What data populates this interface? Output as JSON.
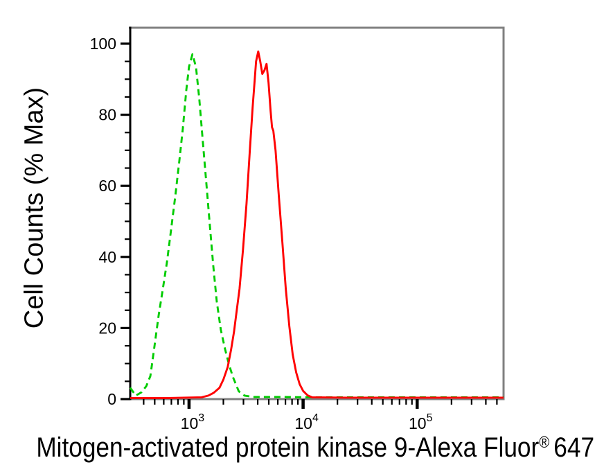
{
  "figure": {
    "y_axis_title": "Cell Counts (% Max)",
    "x_axis_title": {
      "prefix": "Mitogen-activated protein kinase 9-Alexa Fluor",
      "registered_mark": "®",
      "suffix": "647"
    }
  },
  "colors": {
    "background": "#ffffff",
    "frame_gray": "#808080",
    "axis_black": "#000000",
    "green_series": "#00cc00",
    "red_series": "#ff0000",
    "text": "#000000"
  },
  "chart_data": {
    "type": "line",
    "subtype": "flow-cytometry-histogram",
    "title": "",
    "xlabel": "Mitogen-activated protein kinase 9-Alexa Fluor® 647",
    "ylabel": "Cell Counts (% Max)",
    "x_scale": "log10",
    "x_range": [
      305,
      572000
    ],
    "ylim": [
      0,
      104.5
    ],
    "grid": false,
    "legend": "none",
    "y_ticks": [
      0,
      20,
      40,
      60,
      80,
      100
    ],
    "y_tick_labels": [
      "0",
      "20",
      "40",
      "60",
      "80",
      "100"
    ],
    "y_minor_tick_step": 5,
    "x_major_ticks": [
      {
        "value": 1000,
        "base": "10",
        "exp": "3"
      },
      {
        "value": 10000,
        "base": "10",
        "exp": "4"
      },
      {
        "value": 100000,
        "base": "10",
        "exp": "5"
      }
    ],
    "series": [
      {
        "name": "green dashed histogram (negative control)",
        "color": "#00cc00",
        "style": "dashed",
        "peak": {
          "x": 1070,
          "y": 97
        },
        "points": [
          [
            305,
            3.2
          ],
          [
            341,
            1.0
          ],
          [
            382,
            1.9
          ],
          [
            421,
            3.6
          ],
          [
            458,
            6.5
          ],
          [
            498,
            15
          ],
          [
            541,
            23.5
          ],
          [
            589,
            31
          ],
          [
            640,
            38.5
          ],
          [
            695,
            47.5
          ],
          [
            757,
            57
          ],
          [
            822,
            67
          ],
          [
            882,
            76
          ],
          [
            946,
            87
          ],
          [
            1000,
            93.5
          ],
          [
            1070,
            97
          ],
          [
            1150,
            93.5
          ],
          [
            1230,
            84.5
          ],
          [
            1320,
            72.5
          ],
          [
            1420,
            60.5
          ],
          [
            1520,
            49
          ],
          [
            1630,
            37.5
          ],
          [
            1750,
            27.5
          ],
          [
            1900,
            19.5
          ],
          [
            2070,
            14
          ],
          [
            2250,
            9.5
          ],
          [
            2440,
            6
          ],
          [
            2730,
            2.2
          ],
          [
            3060,
            1.0
          ],
          [
            3660,
            0.6
          ],
          [
            5960,
            0.6
          ],
          [
            12000,
            0.5
          ],
          [
            48400,
            0.5
          ],
          [
            572000,
            0.5
          ]
        ]
      },
      {
        "name": "red solid histogram (stained sample)",
        "color": "#ff0000",
        "style": "solid",
        "peak": {
          "x": 4040,
          "y": 97.8
        },
        "points": [
          [
            305,
            0.3
          ],
          [
            640,
            0.3
          ],
          [
            1290,
            0.5
          ],
          [
            1480,
            1.0
          ],
          [
            1650,
            1.8
          ],
          [
            1850,
            3.2
          ],
          [
            2000,
            5.5
          ],
          [
            2180,
            9
          ],
          [
            2340,
            14
          ],
          [
            2480,
            19
          ],
          [
            2620,
            25
          ],
          [
            2770,
            31
          ],
          [
            2970,
            42
          ],
          [
            3190,
            55
          ],
          [
            3410,
            70
          ],
          [
            3610,
            82
          ],
          [
            3770,
            90
          ],
          [
            3870,
            95
          ],
          [
            4040,
            97.8
          ],
          [
            4210,
            95
          ],
          [
            4390,
            91.5
          ],
          [
            4580,
            92.5
          ],
          [
            4780,
            94.3
          ],
          [
            4980,
            89
          ],
          [
            5190,
            81
          ],
          [
            5340,
            76.5
          ],
          [
            5480,
            75.5
          ],
          [
            5730,
            70
          ],
          [
            6130,
            57
          ],
          [
            6580,
            44
          ],
          [
            7050,
            31
          ],
          [
            7570,
            20.5
          ],
          [
            8110,
            12.5
          ],
          [
            8690,
            7.5
          ],
          [
            9320,
            4.2
          ],
          [
            10000,
            2.3
          ],
          [
            10900,
            1.1
          ],
          [
            12000,
            0.5
          ],
          [
            24100,
            0.4
          ],
          [
            97300,
            0.4
          ],
          [
            572000,
            0.4
          ]
        ]
      }
    ]
  }
}
